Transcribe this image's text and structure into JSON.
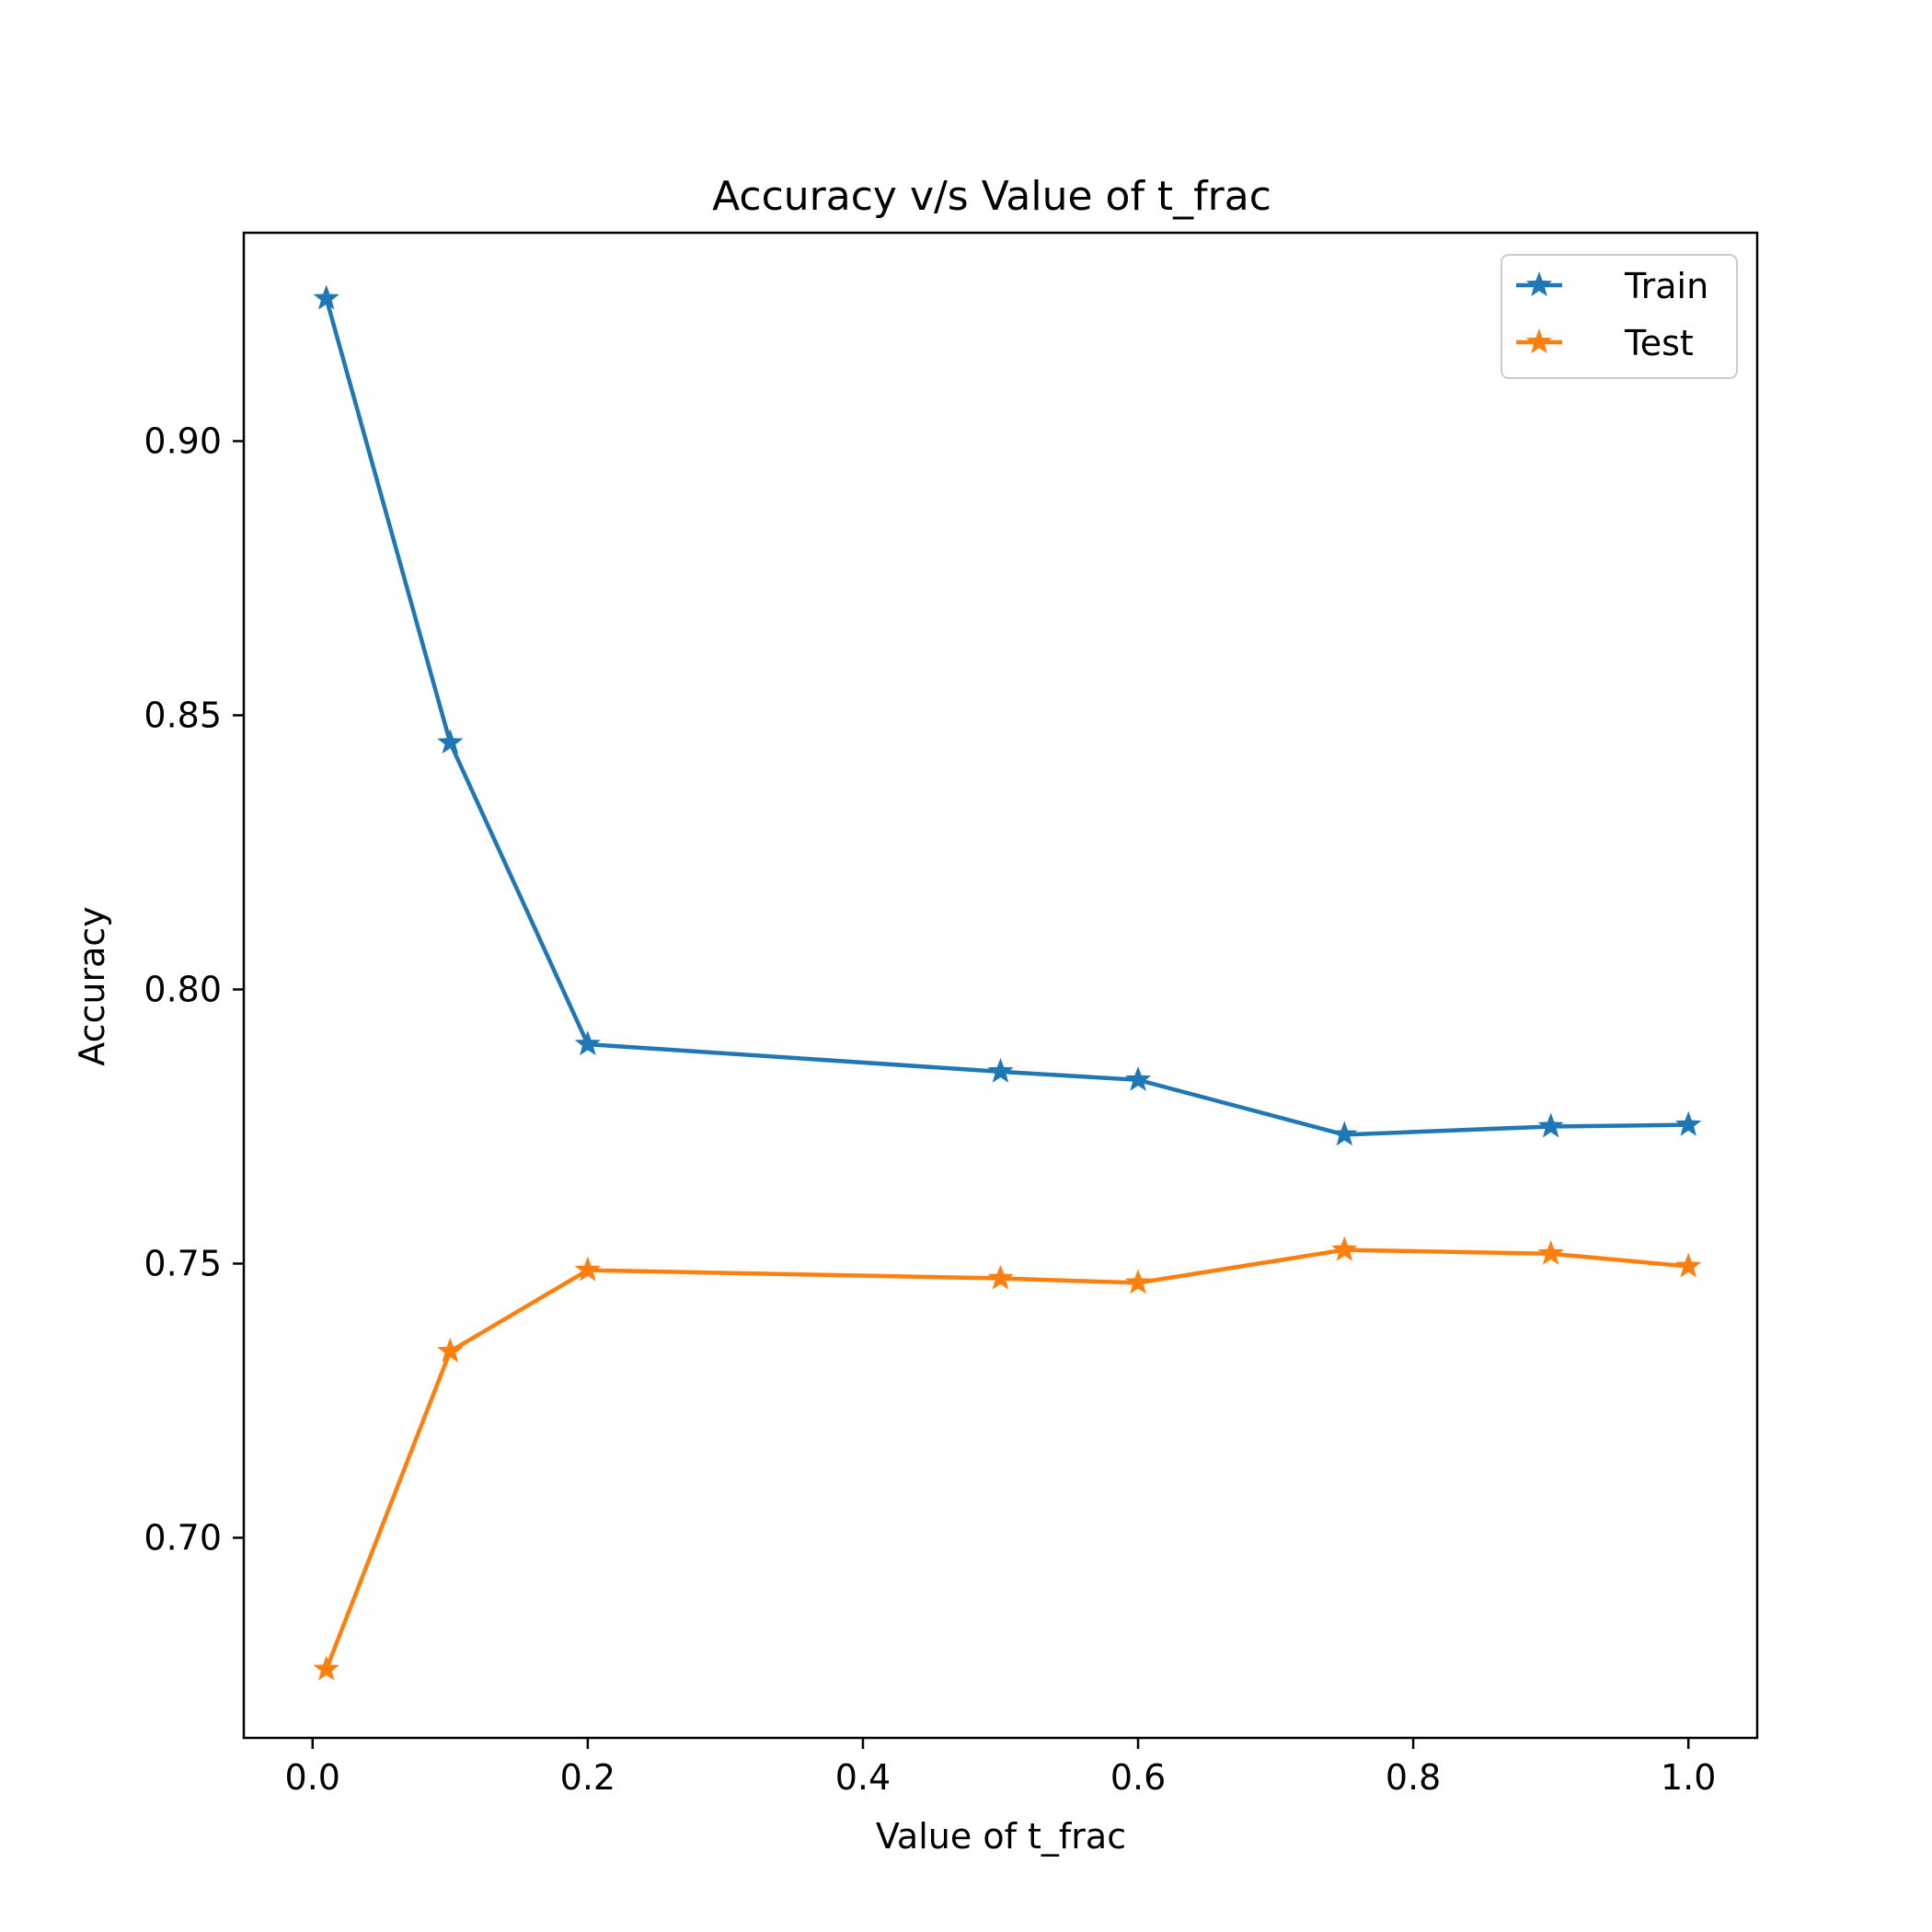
{
  "chart_data": {
    "type": "line",
    "title": "Accuracy v/s Value of t_frac",
    "xlabel": "Value of t_frac",
    "ylabel": "Accuracy",
    "xlim": [
      -0.05,
      1.05
    ],
    "ylim": [
      0.6635,
      0.938
    ],
    "xticks": [
      0.0,
      0.2,
      0.4,
      0.6,
      0.8,
      1.0
    ],
    "xtick_labels": [
      "0.0",
      "0.2",
      "0.4",
      "0.6",
      "0.8",
      "1.0"
    ],
    "yticks": [
      0.7,
      0.75,
      0.8,
      0.85,
      0.9
    ],
    "ytick_labels": [
      "0.70",
      "0.75",
      "0.80",
      "0.85",
      "0.90"
    ],
    "grid": false,
    "legend_position": "top-right",
    "x": [
      0.01,
      0.1,
      0.2,
      0.5,
      0.6,
      0.75,
      0.9,
      1.0
    ],
    "series": [
      {
        "name": "Train",
        "color": "#1f77b4",
        "marker": "star",
        "values": [
          0.926,
          0.845,
          0.79,
          0.785,
          0.7835,
          0.7735,
          0.775,
          0.7753
        ]
      },
      {
        "name": "Test",
        "color": "#ff7f0e",
        "marker": "star",
        "values": [
          0.676,
          0.734,
          0.7488,
          0.7473,
          0.7465,
          0.7525,
          0.7518,
          0.7495
        ]
      }
    ]
  }
}
